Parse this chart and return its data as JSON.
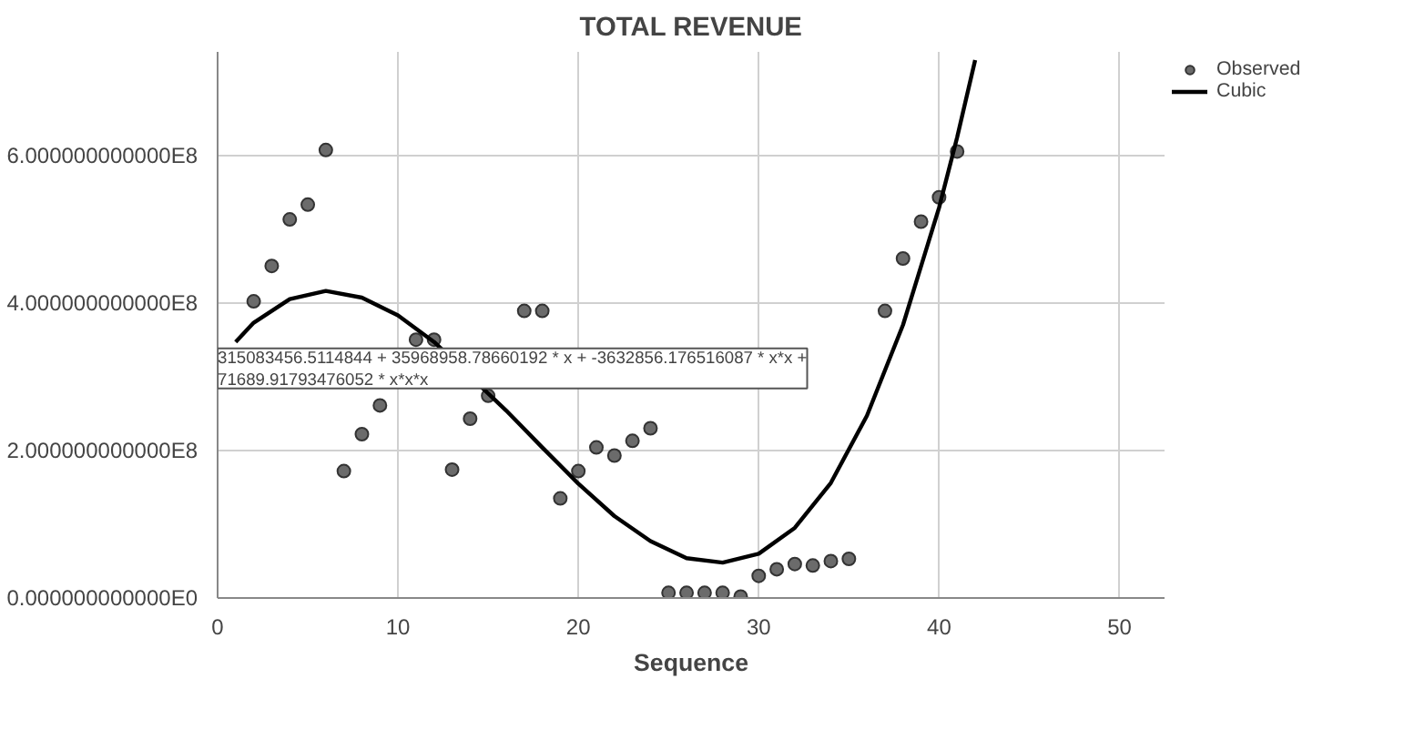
{
  "chart_data": {
    "type": "scatter",
    "title": "TOTAL REVENUE",
    "xlabel": "Sequence",
    "xlim": [
      0,
      52.5
    ],
    "xticks": [
      0,
      10,
      20,
      30,
      40,
      50
    ],
    "ylim": [
      0,
      740000000
    ],
    "yticks": [
      {
        "value": 0,
        "label": "0.000000000000E0"
      },
      {
        "value": 200000000,
        "label": "2.000000000000E8"
      },
      {
        "value": 400000000,
        "label": "4.000000000000E8"
      },
      {
        "value": 600000000,
        "label": "6.000000000000E8"
      }
    ],
    "grid": true,
    "legend": "top right",
    "series": [
      {
        "name": "Observed",
        "marker": "circle",
        "color": "#6b6b6b",
        "x": [
          2,
          3,
          4,
          5,
          6,
          7,
          8,
          9,
          11,
          12,
          13,
          14,
          15,
          17,
          18,
          19,
          20,
          21,
          22,
          23,
          24,
          25,
          26,
          27,
          28,
          29,
          30,
          31,
          32,
          33,
          34,
          35,
          37,
          38,
          39,
          40,
          41
        ],
        "values": [
          402000000,
          450000000,
          513000000,
          533000000,
          607000000,
          172000000,
          222000000,
          261000000,
          350000000,
          350000000,
          174000000,
          243000000,
          274000000,
          389000000,
          389000000,
          135000000,
          172000000,
          204000000,
          193000000,
          213000000,
          230000000,
          7000000,
          7000000,
          7000000,
          7000000,
          2000000,
          30000000,
          39000000,
          46000000,
          44000000,
          50000000,
          53000000,
          389000000,
          460000000,
          510000000,
          543000000,
          605000000
        ]
      },
      {
        "name": "Cubic",
        "type": "line",
        "color": "#000000",
        "line_style": "solid",
        "x": [
          1,
          2,
          4,
          6,
          8,
          10,
          12,
          16,
          18,
          20,
          22,
          24,
          26,
          28,
          30,
          32,
          34,
          36,
          38,
          40,
          41,
          42
        ],
        "values": [
          347000000,
          373000000,
          405000000,
          416000000,
          407000000,
          383000000,
          347000000,
          254000000,
          204000000,
          155000000,
          111000000,
          77000000,
          54000000,
          48000000,
          60000000,
          95000000,
          156000000,
          247000000,
          370000000,
          529000000,
          624000000,
          729000000
        ]
      }
    ],
    "annotations": [
      "315083456.5114844 + 35968958.78660192 * x + -3632856.176516087 * x*x + 71689.91793476052 * x*x*x"
    ]
  }
}
